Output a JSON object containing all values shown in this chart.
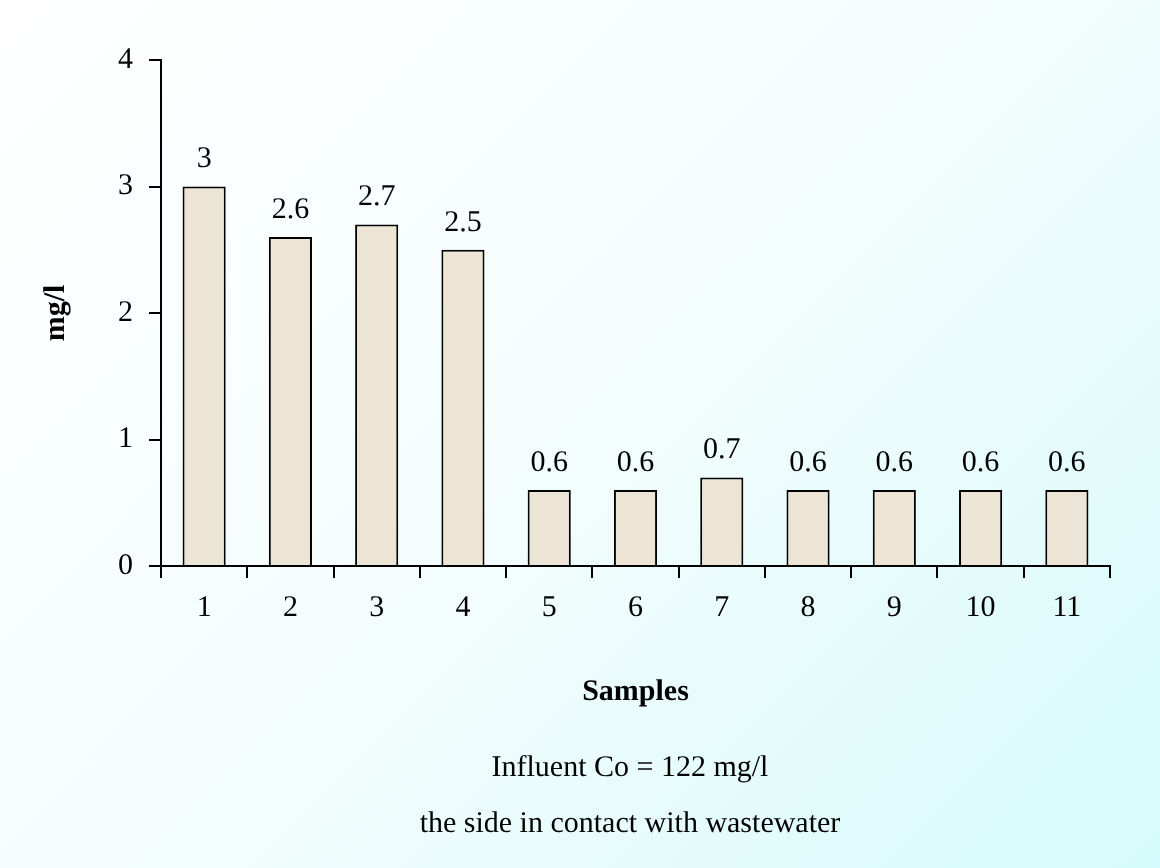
{
  "chart_data": {
    "type": "bar",
    "xlabel": "Samples",
    "ylabel": "mg/l",
    "categories": [
      "1",
      "2",
      "3",
      "4",
      "5",
      "6",
      "7",
      "8",
      "9",
      "10",
      "11"
    ],
    "values": [
      3,
      2.6,
      2.7,
      2.5,
      0.6,
      0.6,
      0.7,
      0.6,
      0.6,
      0.6,
      0.6
    ],
    "color": "#ece4d4",
    "ylim": [
      0,
      4
    ],
    "yticks": [
      0,
      1,
      2,
      3,
      4
    ],
    "grid": false,
    "legend": false,
    "data_labels": true,
    "annotations": [
      "Influent Co = 122 mg/l",
      "the side in contact with wastewater"
    ]
  }
}
